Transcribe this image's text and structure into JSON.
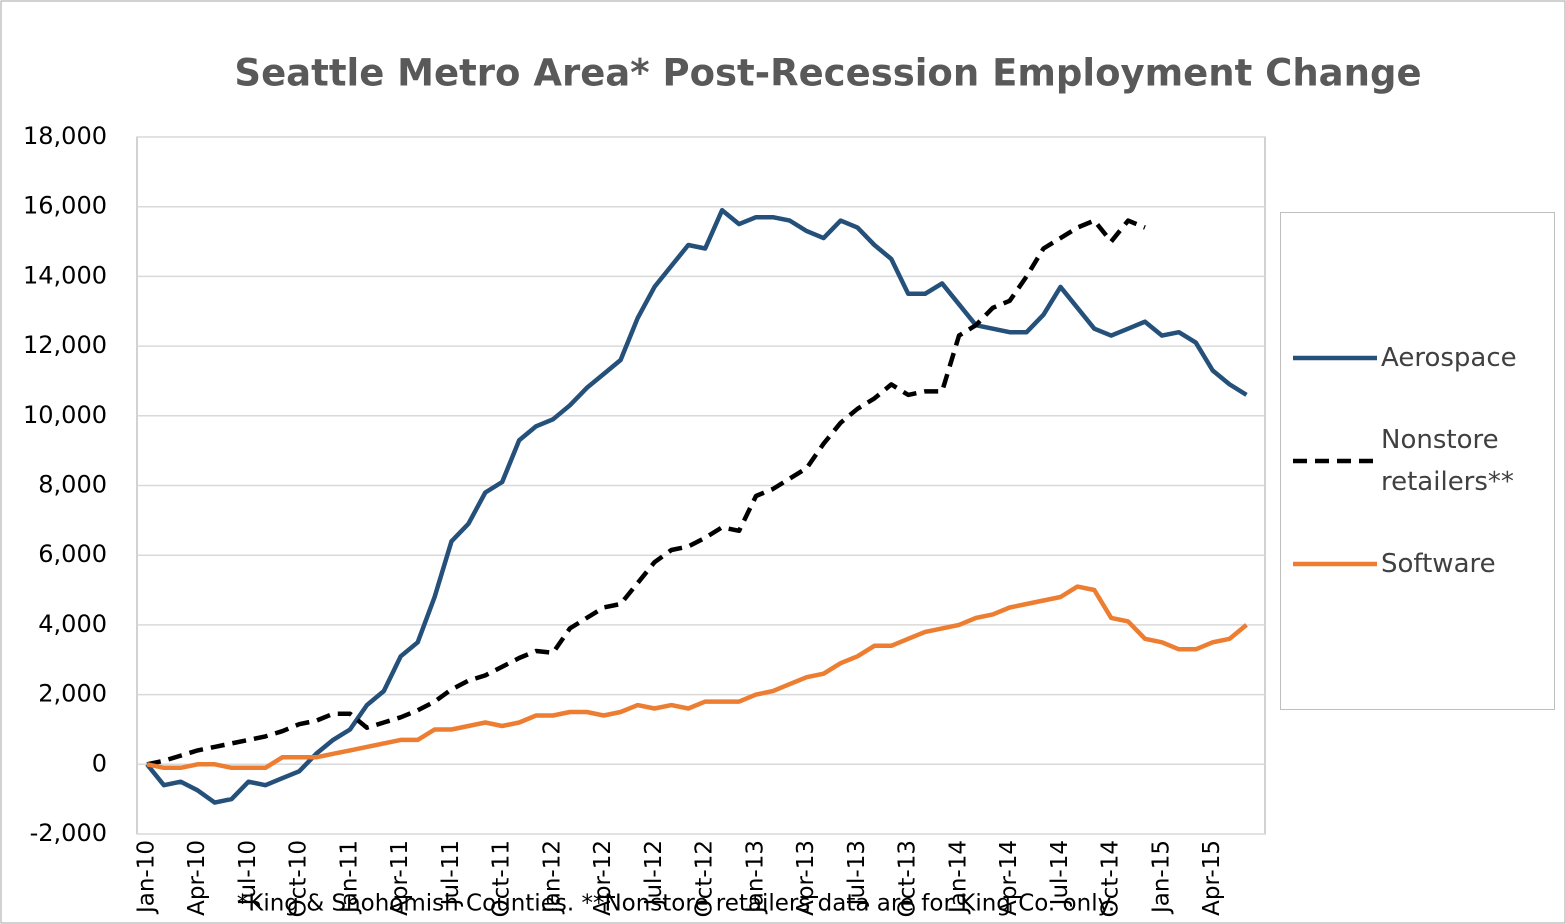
{
  "chart_data": {
    "type": "line",
    "title": "Seattle Metro Area* Post-Recession Employment Change",
    "footnote": "*King & Snohomish Counties.  **Nonstore retailers data are for King Co. only.",
    "categories": [
      "Jan-10",
      null,
      null,
      "Apr-10",
      null,
      null,
      "Jul-10",
      null,
      null,
      "Oct-10",
      null,
      null,
      "Jan-11",
      null,
      null,
      "Apr-11",
      null,
      null,
      "Jul-11",
      null,
      null,
      "Oct-11",
      null,
      null,
      "Jan-12",
      null,
      null,
      "Apr-12",
      null,
      null,
      "Jul-12",
      null,
      null,
      "Oct-12",
      null,
      null,
      "Jan-13",
      null,
      null,
      "Apr-13",
      null,
      null,
      "Jul-13",
      null,
      null,
      "Oct-13",
      null,
      null,
      "Jan-14",
      null,
      null,
      "Apr-14",
      null,
      null,
      "Jul-14",
      null,
      null,
      "Oct-14",
      null,
      null,
      "Jan-15",
      null,
      null,
      "Apr-15",
      null,
      null
    ],
    "series": [
      {
        "name": "Aerospace",
        "color": "#24507a",
        "dash": false,
        "values": [
          0,
          -600,
          -500,
          -750,
          -1100,
          -1000,
          -500,
          -600,
          -400,
          -200,
          300,
          700,
          1000,
          1700,
          2100,
          3100,
          3500,
          4800,
          6400,
          6900,
          7800,
          8100,
          9300,
          9700,
          9900,
          10300,
          10800,
          11200,
          11600,
          12800,
          13700,
          14300,
          14900,
          14800,
          15900,
          15500,
          15700,
          15700,
          15600,
          15300,
          15100,
          15600,
          15400,
          14900,
          14500,
          13500,
          13500,
          13800,
          13200,
          12600,
          12500,
          12400,
          12400,
          12900,
          13700,
          13100,
          12500,
          12300,
          12500,
          12700,
          12300,
          12400,
          12100,
          11300,
          10900,
          10600
        ]
      },
      {
        "name": "Nonstore retailers**",
        "color": "#000000",
        "dash": true,
        "values": [
          0,
          100,
          250,
          400,
          500,
          600,
          700,
          800,
          950,
          1150,
          1250,
          1450,
          1450,
          1050,
          1200,
          1350,
          1550,
          1800,
          2150,
          2400,
          2550,
          2800,
          3050,
          3250,
          3200,
          3900,
          4200,
          4500,
          4600,
          5200,
          5800,
          6150,
          6250,
          6500,
          6800,
          6700,
          7700,
          7900,
          8200,
          8500,
          9200,
          9800,
          10200,
          10500,
          10900,
          10600,
          10700,
          10700,
          12300,
          12600,
          13100,
          13300,
          14000,
          14800,
          15100,
          15400,
          15600,
          15000,
          15600,
          15400,
          null,
          null,
          null,
          null,
          null,
          null
        ]
      },
      {
        "name": "Software",
        "color": "#ed7d31",
        "dash": false,
        "values": [
          0,
          -100,
          -100,
          0,
          0,
          -100,
          -100,
          -100,
          200,
          200,
          200,
          300,
          400,
          500,
          600,
          700,
          700,
          1000,
          1000,
          1100,
          1200,
          1100,
          1200,
          1400,
          1400,
          1500,
          1500,
          1400,
          1500,
          1700,
          1600,
          1700,
          1600,
          1800,
          1800,
          1800,
          2000,
          2100,
          2300,
          2500,
          2600,
          2900,
          3100,
          3400,
          3400,
          3600,
          3800,
          3900,
          4000,
          4200,
          4300,
          4500,
          4600,
          4700,
          4800,
          5100,
          5000,
          4200,
          4100,
          3600,
          3500,
          3300,
          3300,
          3500,
          3600,
          4000
        ]
      }
    ],
    "ylim": [
      -2000,
      18000
    ],
    "yticks": [
      {
        "value": -2000,
        "label": "-2,000"
      },
      0,
      {
        "value": 2000,
        "label": "2,000"
      },
      {
        "value": 4000,
        "label": "4,000"
      },
      {
        "value": 6000,
        "label": "6,000"
      },
      {
        "value": 8000,
        "label": "8,000"
      },
      {
        "value": 10000,
        "label": "10,000"
      },
      {
        "value": 12000,
        "label": "12,000"
      },
      {
        "value": 14000,
        "label": "14,000"
      },
      {
        "value": 16000,
        "label": "16,000"
      },
      {
        "value": 18000,
        "label": "18,000"
      }
    ],
    "grid": true,
    "legend": "right"
  }
}
